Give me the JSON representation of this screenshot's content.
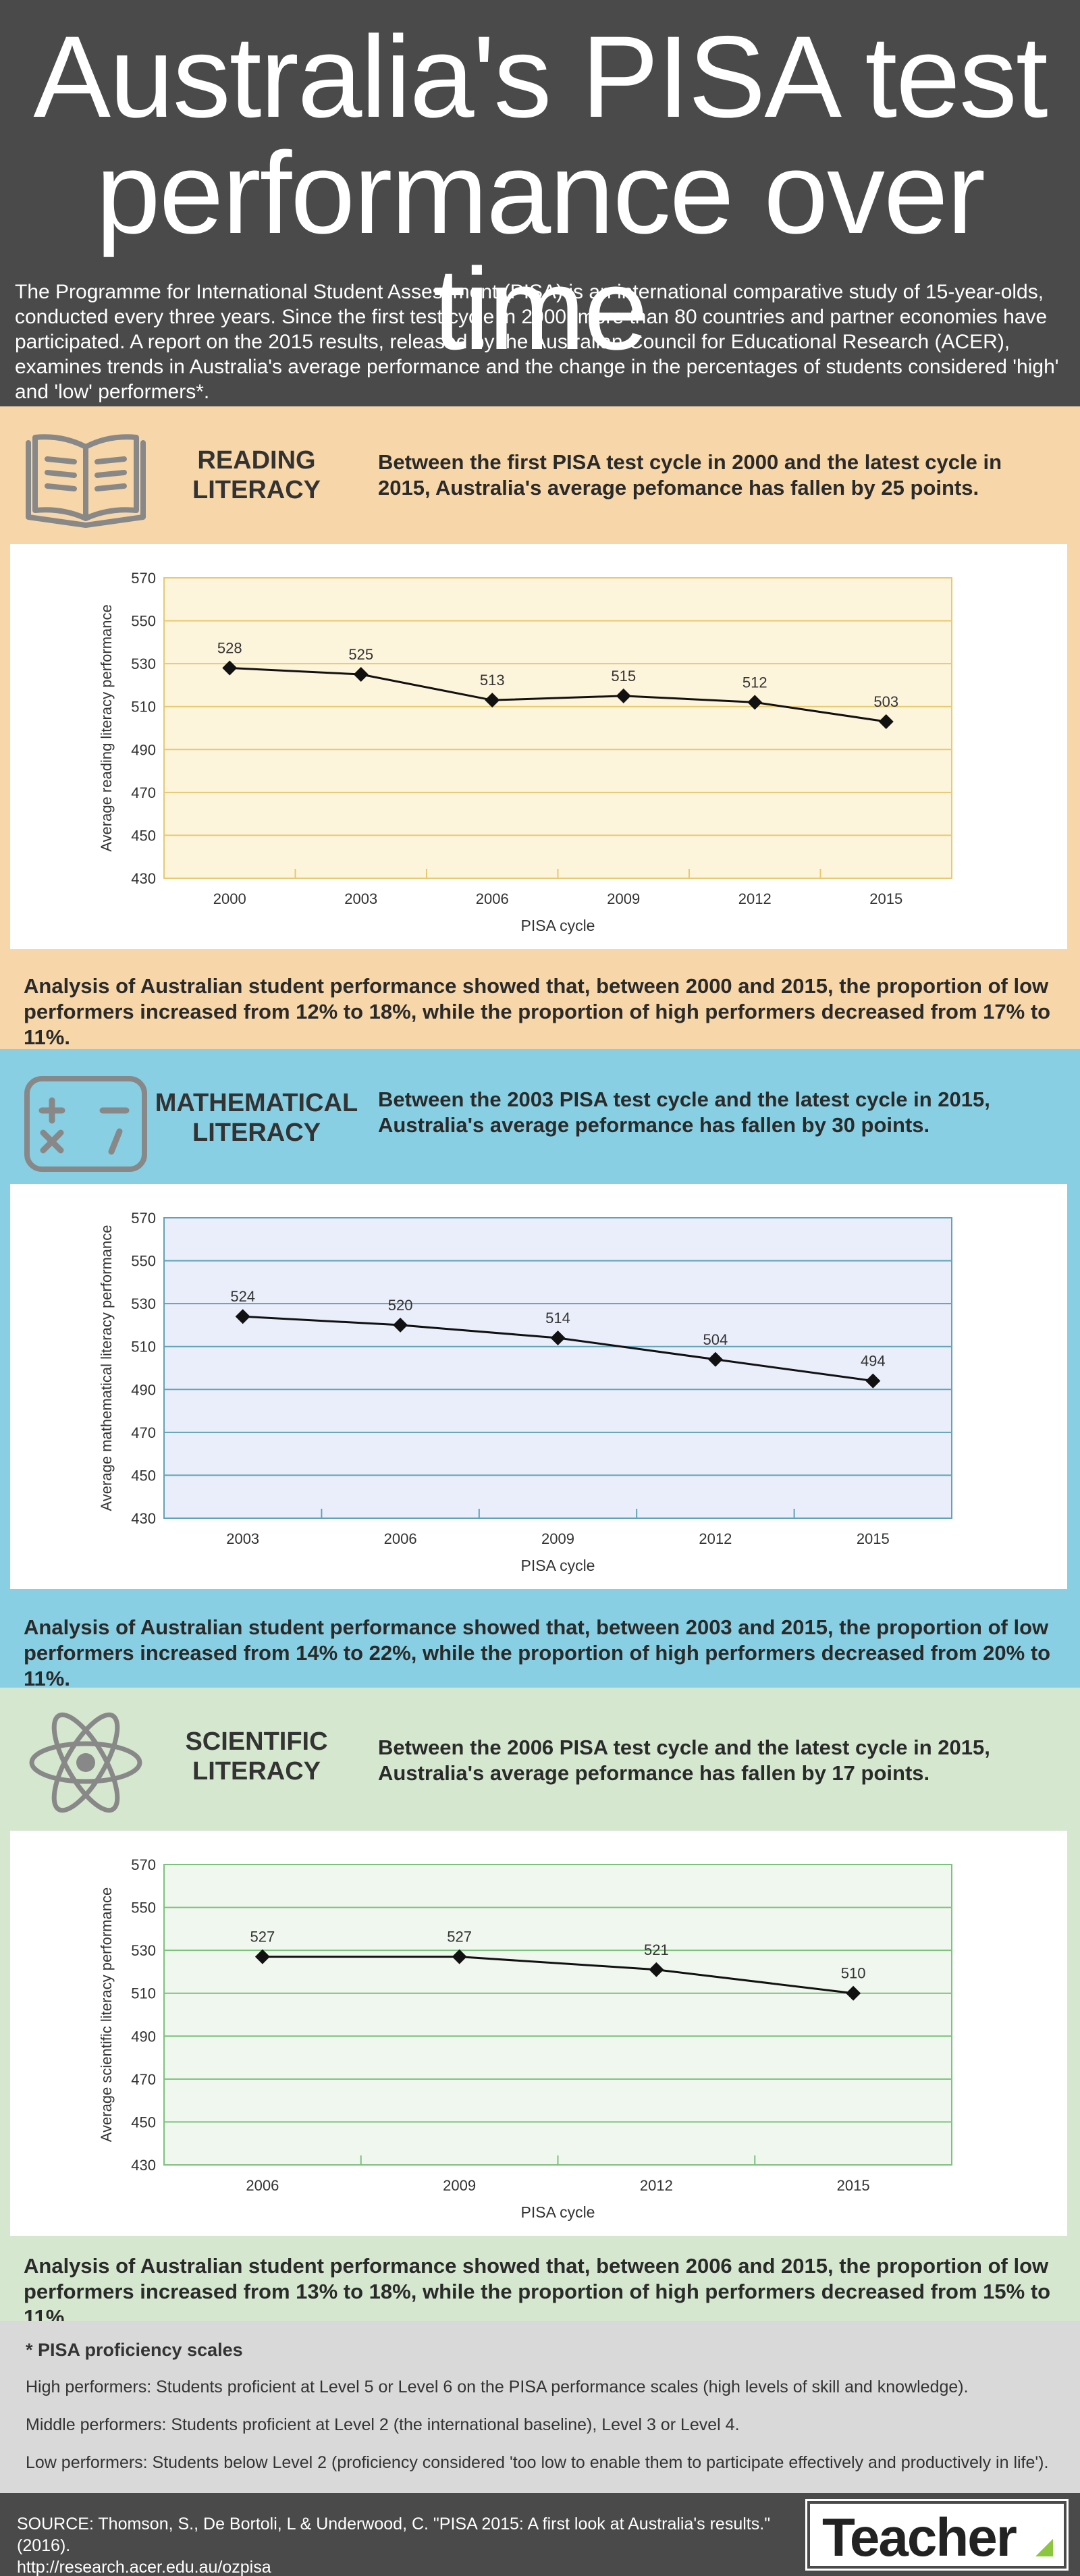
{
  "header": {
    "title_line1": "Australia's PISA test",
    "title_line2": "performance over time",
    "intro": "The Programme for International Student Assessment (PISA) is an international comparative study of 15-year-olds, conducted every three years. Since the first test cycle in 2000, more than 80 countries and partner economies have participated. A report on the 2015 results, released by the Australian Council for Educational Research (ACER), examines trends in Australia's average performance and the change in the percentages of students considered 'high' and 'low' performers*."
  },
  "sections": [
    {
      "title_line1": "READING",
      "title_line2": "LITERACY",
      "icon": "book-icon",
      "summary": "Between the first PISA test cycle in 2000 and the latest cycle in 2015, Australia's average pefomance has fallen by 25 points.",
      "analysis": "Analysis of Australian student performance showed that, between 2000 and 2015, the proportion of low performers increased from 12% to 18%, while the proportion of high performers decreased from 17% to 11%.",
      "colors": {
        "plot_bg": "#fdf4dc",
        "grid": "#e8c96f"
      }
    },
    {
      "title_line1": "MATHEMATICAL",
      "title_line2": "LITERACY",
      "icon": "calculator-icon",
      "summary": "Between the 2003 PISA test cycle and the latest cycle in 2015, Australia's average peformance has fallen by 30 points.",
      "analysis": "Analysis of Australian student performance showed that, between 2003 and 2015, the proportion of low performers increased from 14% to 22%, while the proportion of high performers decreased from 20% to 11%.",
      "colors": {
        "plot_bg": "#eaeefa",
        "grid": "#5fa3b8"
      }
    },
    {
      "title_line1": "SCIENTIFIC",
      "title_line2": "LITERACY",
      "icon": "atom-icon",
      "summary": "Between the 2006 PISA test cycle and the latest cycle in 2015, Australia's average peformance has fallen by 17 points.",
      "analysis": "Analysis of Australian student performance showed that, between 2006 and 2015, the proportion of low performers increased from 13% to 18%, while the proportion of high performers decreased from 15% to 11%.",
      "colors": {
        "plot_bg": "#f0f7ee",
        "grid": "#7bc27a"
      }
    }
  ],
  "chart_data": [
    {
      "type": "line",
      "title": "",
      "xlabel": "PISA cycle",
      "ylabel": "Average reading literacy performance",
      "categories": [
        "2000",
        "2003",
        "2006",
        "2009",
        "2012",
        "2015"
      ],
      "values": [
        528,
        525,
        513,
        515,
        512,
        503
      ],
      "ylim": [
        430,
        570
      ],
      "yticks": [
        430,
        450,
        470,
        490,
        510,
        530,
        550,
        570
      ],
      "grid": true
    },
    {
      "type": "line",
      "title": "",
      "xlabel": "PISA cycle",
      "ylabel": "Average mathematical literacy performance",
      "categories": [
        "2003",
        "2006",
        "2009",
        "2012",
        "2015"
      ],
      "values": [
        524,
        520,
        514,
        504,
        494
      ],
      "ylim": [
        430,
        570
      ],
      "yticks": [
        430,
        450,
        470,
        490,
        510,
        530,
        550,
        570
      ],
      "grid": true
    },
    {
      "type": "line",
      "title": "",
      "xlabel": "PISA cycle",
      "ylabel": "Average scientific literacy performance",
      "categories": [
        "2006",
        "2009",
        "2012",
        "2015"
      ],
      "values": [
        527,
        527,
        521,
        510
      ],
      "ylim": [
        430,
        570
      ],
      "yticks": [
        430,
        450,
        470,
        490,
        510,
        530,
        550,
        570
      ],
      "grid": true
    }
  ],
  "footnote": {
    "title": "* PISA proficiency scales",
    "high": "High performers: Students proficient at Level 5 or Level 6 on the PISA performance scales (high levels of skill and knowledge).",
    "middle": "Middle performers: Students proficient at Level 2 (the international baseline), Level 3 or Level 4.",
    "low": "Low performers: Students below Level 2 (proficiency considered 'too low to enable them to participate effectively and productively in life')."
  },
  "source": {
    "line1": "SOURCE: Thomson, S., De Bortoli, L & Underwood, C. \"PISA 2015: A first look at Australia's results.\" (2016).",
    "line2": "http://research.acer.edu.au/ozpisa"
  },
  "logo": {
    "text": "Teacher",
    "accent": "#8cc63f"
  }
}
